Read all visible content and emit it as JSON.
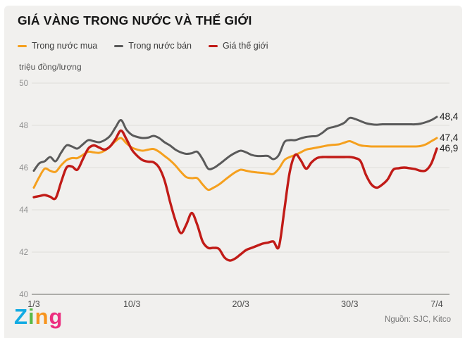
{
  "header": {
    "title": "GIÁ VÀNG TRONG NƯỚC VÀ THẾ GIỚI"
  },
  "chart_data": {
    "type": "line",
    "title": "GIÁ VÀNG TRONG NƯỚC VÀ THẾ GIỚI",
    "unit_label": "triệu đồng/lượng",
    "x_tick_labels": [
      "1/3",
      "10/3",
      "20/3",
      "30/3",
      "7/4"
    ],
    "x_tick_days": [
      0,
      9,
      19,
      29,
      37
    ],
    "x_total_days": 37,
    "y_ticks": [
      40,
      42,
      44,
      46,
      48,
      50
    ],
    "ylim": [
      40,
      50
    ],
    "grid": true,
    "legend_position": "top-left",
    "series": [
      {
        "name": "Trong nước mua",
        "color": "#F5A01E",
        "stroke_width": 3,
        "end_label": "47,4",
        "end_value": 47.4,
        "values": [
          45.05,
          45.55,
          45.95,
          45.85,
          45.8,
          46.1,
          46.35,
          46.45,
          46.45,
          46.6,
          46.75,
          46.72,
          46.7,
          46.8,
          47.0,
          47.25,
          47.4,
          47.15,
          46.95,
          46.85,
          46.8,
          46.85,
          46.88,
          46.75,
          46.55,
          46.35,
          46.1,
          45.8,
          45.55,
          45.5,
          45.5,
          45.2,
          44.95,
          45.05,
          45.2,
          45.4,
          45.6,
          45.78,
          45.9,
          45.85,
          45.8,
          45.77,
          45.75,
          45.72,
          45.7,
          45.95,
          46.35,
          46.5,
          46.6,
          46.72,
          46.85,
          46.9,
          46.95,
          47.0,
          47.05,
          47.08,
          47.1,
          47.18,
          47.25,
          47.15,
          47.05,
          47.02,
          47.0,
          47.0,
          47.0,
          47.0,
          47.0,
          47.0,
          47.0,
          47.0,
          47.0,
          47.02,
          47.1,
          47.25,
          47.4
        ]
      },
      {
        "name": "Trong nước bán",
        "color": "#5A5A5A",
        "stroke_width": 3,
        "end_label": "48,4",
        "end_value": 48.4,
        "values": [
          45.85,
          46.2,
          46.3,
          46.5,
          46.3,
          46.7,
          47.05,
          47.0,
          46.9,
          47.1,
          47.3,
          47.25,
          47.2,
          47.3,
          47.5,
          47.9,
          48.25,
          47.8,
          47.55,
          47.45,
          47.4,
          47.42,
          47.5,
          47.4,
          47.2,
          47.05,
          46.85,
          46.72,
          46.65,
          46.68,
          46.75,
          46.4,
          45.95,
          45.98,
          46.15,
          46.35,
          46.55,
          46.7,
          46.8,
          46.72,
          46.6,
          46.55,
          46.55,
          46.55,
          46.4,
          46.6,
          47.2,
          47.3,
          47.3,
          47.38,
          47.45,
          47.48,
          47.5,
          47.65,
          47.85,
          47.92,
          48.0,
          48.12,
          48.35,
          48.3,
          48.2,
          48.1,
          48.05,
          48.03,
          48.05,
          48.05,
          48.05,
          48.05,
          48.05,
          48.05,
          48.05,
          48.08,
          48.15,
          48.25,
          48.4
        ]
      },
      {
        "name": "Giá thế giới",
        "color": "#C11B17",
        "stroke_width": 3.4,
        "end_label": "46,9",
        "end_value": 46.9,
        "values": [
          44.6,
          44.65,
          44.7,
          44.62,
          44.55,
          45.3,
          46.0,
          46.05,
          45.9,
          46.4,
          46.9,
          47.05,
          46.95,
          46.85,
          47.0,
          47.35,
          47.75,
          47.35,
          46.85,
          46.55,
          46.35,
          46.28,
          46.25,
          46.0,
          45.4,
          44.4,
          43.5,
          42.9,
          43.3,
          43.85,
          43.3,
          42.5,
          42.2,
          42.2,
          42.15,
          41.75,
          41.6,
          41.7,
          41.9,
          42.1,
          42.2,
          42.3,
          42.4,
          42.45,
          42.5,
          42.25,
          44.0,
          45.8,
          46.6,
          46.35,
          45.95,
          46.25,
          46.45,
          46.5,
          46.5,
          46.5,
          46.5,
          46.5,
          46.5,
          46.45,
          46.3,
          45.65,
          45.2,
          45.05,
          45.2,
          45.45,
          45.9,
          45.97,
          46.0,
          45.97,
          45.93,
          45.85,
          45.87,
          46.2,
          46.9
        ]
      }
    ]
  },
  "footer": {
    "logo_letters": [
      {
        "ch": "Z",
        "color": "#12ABE3"
      },
      {
        "ch": "i",
        "color": "#58B947"
      },
      {
        "ch": "n",
        "color": "#F7941E"
      },
      {
        "ch": "g",
        "color": "#EC2E7F"
      }
    ],
    "source": "Nguồn: SJC, Kitco"
  }
}
